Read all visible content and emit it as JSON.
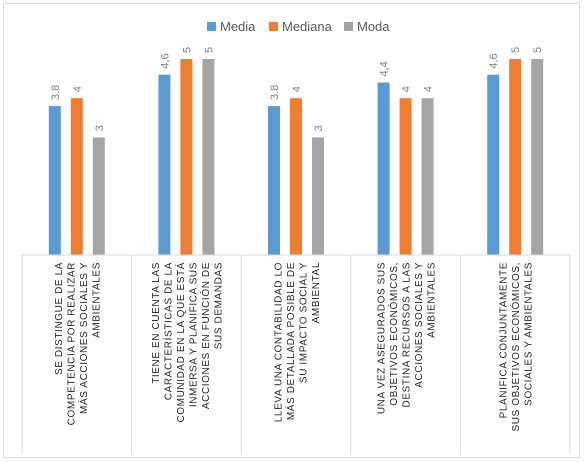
{
  "chart_data": {
    "type": "bar",
    "title": "",
    "xlabel": "",
    "ylabel": "",
    "ylim": [
      0,
      5
    ],
    "grid": false,
    "legend_position": "top",
    "categories": [
      [
        "SE DISTINGUE DE LA",
        "COMPETENCIA POR REALIZAR",
        "MÁS ACCIONES SOCIALES Y",
        "AMBIENTALES"
      ],
      [
        "TIENE EN CUENTA LAS",
        "CARACTERÍSTICAS DE LA",
        "COMUNIDAD EN LA QUE ESTÁ",
        "INMERSA Y PLANIFICA SUS",
        "ACCIONES EN FUNCIÓN DE",
        "SUS DEMANDAS"
      ],
      [
        "LLEVA UNA CONTABILIDAD LO",
        "MÁS DETALLADA POSIBLE DE",
        "SU IMPACTO SOCIAL Y",
        "AMBIENTAL"
      ],
      [
        "UNA VEZ ASEGURADOS SUS",
        "OBJETIVOS ECONÓMICOS,",
        "DESTINA RECURSOS A LAS",
        "ACCIONES SOCIALES Y",
        "AMBIENTALES"
      ],
      [
        "PLANIFICA CONJUNTAMENTE",
        "SUS OBJETIVOS ECONÓMICOS,",
        "SOCIALES Y AMBIENTALES"
      ]
    ],
    "series": [
      {
        "name": "Media",
        "values": [
          3.8,
          4.6,
          3.8,
          4.4,
          4.6
        ],
        "labels": [
          "3.8",
          "4,6",
          "3.8",
          "4,4",
          "4,6"
        ],
        "color": "#5b9bd5"
      },
      {
        "name": "Mediana",
        "values": [
          4,
          5,
          4,
          4,
          5
        ],
        "labels": [
          "4",
          "5",
          "4",
          "4",
          "5"
        ],
        "color": "#ed7d31"
      },
      {
        "name": "Moda",
        "values": [
          3,
          5,
          3,
          4,
          5
        ],
        "labels": [
          "3",
          "5",
          "3",
          "4",
          "5"
        ],
        "color": "#a5a5a5"
      }
    ],
    "colors": {
      "axis": "#d9d9d9",
      "label": "#808080",
      "category_text": "#262626"
    }
  }
}
